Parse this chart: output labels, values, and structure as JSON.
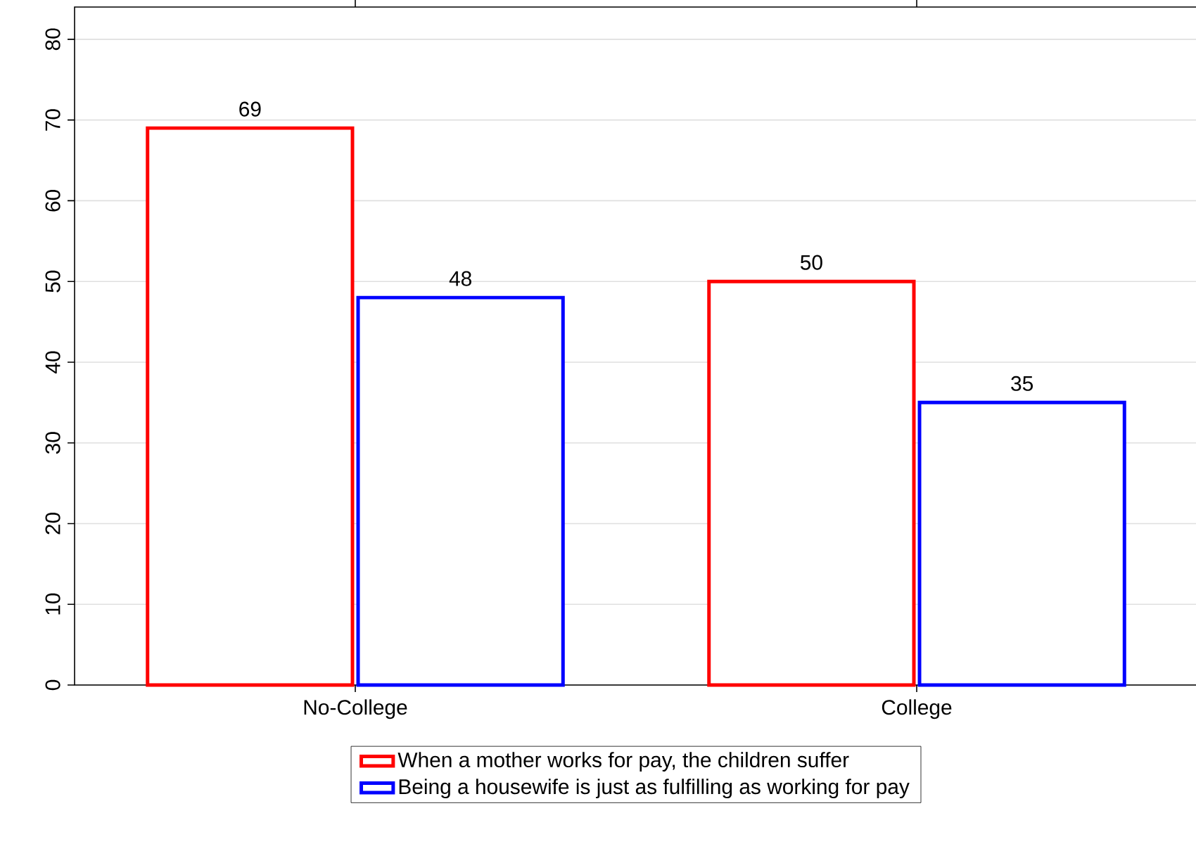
{
  "chart_data": {
    "type": "bar",
    "categories": [
      "No-College",
      "College"
    ],
    "series": [
      {
        "name": "When a mother works for pay, the children suffer",
        "color": "#ff0000",
        "values": [
          69,
          50
        ]
      },
      {
        "name": "Being a housewife is just as fulfilling as working for pay",
        "color": "#0000ff",
        "values": [
          48,
          35
        ]
      }
    ],
    "ylim": [
      0,
      84
    ],
    "yticks": [
      0,
      10,
      20,
      30,
      40,
      50,
      60,
      70,
      80
    ],
    "grid": "y",
    "legend": "bottom",
    "data_labels": true
  }
}
